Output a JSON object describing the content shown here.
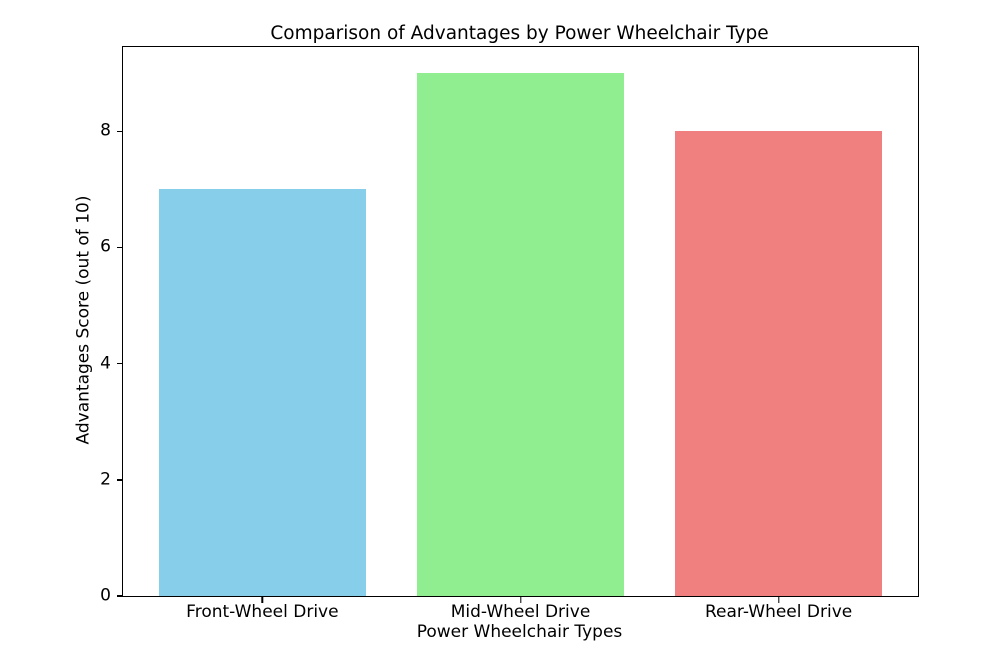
{
  "figure": {
    "background": "#ffffff"
  },
  "chart_data": {
    "type": "bar",
    "title": "Comparison of Advantages by Power Wheelchair Type",
    "xlabel": "Power Wheelchair Types",
    "ylabel": "Advantages Score (out of 10)",
    "categories": [
      "Front-Wheel Drive",
      "Mid-Wheel Drive",
      "Rear-Wheel Drive"
    ],
    "values": [
      7,
      9,
      8
    ],
    "bar_colors": [
      "#87ceeb",
      "#90ee90",
      "#f08080"
    ],
    "bar_width": 0.8,
    "xlim": [
      -0.54,
      2.54
    ],
    "ylim": [
      0,
      9.45
    ],
    "yticks": [
      0,
      2,
      4,
      6,
      8
    ],
    "grid": false,
    "legend_position": "none",
    "axis_color": "#000000",
    "text_color": "#000000"
  }
}
